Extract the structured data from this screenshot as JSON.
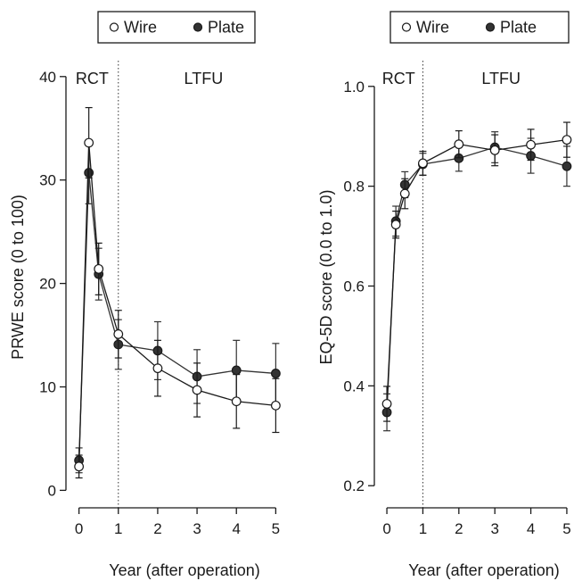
{
  "chart_data": [
    {
      "type": "line",
      "xlabel": "Year (after operation)",
      "ylabel": "PRWE score (0 to 100)",
      "xlim": [
        -0.15,
        5.15
      ],
      "ylim": [
        -1,
        40.5
      ],
      "xticks": [
        0,
        1,
        2,
        3,
        4,
        5
      ],
      "yticks": [
        0,
        10,
        20,
        30,
        40
      ],
      "grid": false,
      "legend_position": "top-center",
      "divider_x": 1,
      "region_labels": [
        "RCT",
        "LTFU"
      ],
      "series": [
        {
          "name": "Wire",
          "marker": "open-circle",
          "color": "#1a1a1a",
          "x": [
            0,
            0.25,
            0.5,
            1,
            2,
            3,
            4,
            5
          ],
          "y": [
            2.3,
            33.6,
            21.4,
            15.1,
            11.8,
            9.7,
            8.6,
            8.2
          ],
          "err": [
            1.1,
            3.4,
            2.5,
            2.3,
            2.7,
            2.6,
            2.6,
            2.6
          ]
        },
        {
          "name": "Plate",
          "marker": "filled-circle",
          "color": "#333333",
          "x": [
            0,
            0.25,
            0.5,
            1,
            2,
            3,
            4,
            5
          ],
          "y": [
            2.9,
            30.7,
            20.9,
            14.1,
            13.5,
            11.0,
            11.6,
            11.3
          ],
          "err": [
            1.2,
            3.0,
            2.5,
            2.4,
            2.8,
            2.6,
            2.9,
            2.9
          ]
        }
      ]
    },
    {
      "type": "line",
      "xlabel": "Year (after operation)",
      "ylabel": "EQ-5D score (0.0 to 1.0)",
      "xlim": [
        -0.15,
        5.15
      ],
      "ylim": [
        0.17,
        1.03
      ],
      "xticks": [
        0,
        1,
        2,
        3,
        4,
        5
      ],
      "yticks": [
        0.2,
        0.4,
        0.6,
        0.8,
        1.0
      ],
      "ytick_labels": [
        "0.2",
        "0.4",
        "0.6",
        "0.8",
        "1.0"
      ],
      "grid": false,
      "legend_position": "top-center",
      "divider_x": 1,
      "region_labels": [
        "RCT",
        "LTFU"
      ],
      "series": [
        {
          "name": "Wire",
          "marker": "open-circle",
          "color": "#1a1a1a",
          "x": [
            0,
            0.25,
            0.5,
            1,
            2,
            3,
            4,
            5
          ],
          "y": [
            0.364,
            0.723,
            0.785,
            0.846,
            0.884,
            0.872,
            0.883,
            0.893
          ],
          "err": [
            0.035,
            0.027,
            0.03,
            0.024,
            0.027,
            0.031,
            0.031,
            0.035
          ]
        },
        {
          "name": "Plate",
          "marker": "filled-circle",
          "color": "#333333",
          "x": [
            0,
            0.25,
            0.5,
            1,
            2,
            3,
            4,
            5
          ],
          "y": [
            0.347,
            0.73,
            0.803,
            0.844,
            0.856,
            0.878,
            0.861,
            0.84
          ],
          "err": [
            0.037,
            0.03,
            0.026,
            0.022,
            0.026,
            0.031,
            0.035,
            0.04
          ]
        }
      ]
    }
  ]
}
